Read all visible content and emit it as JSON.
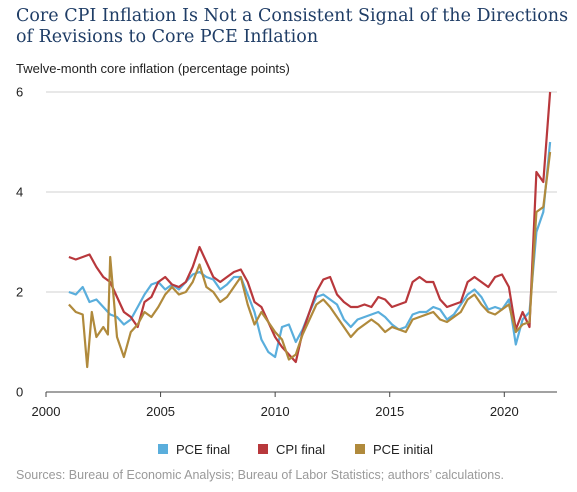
{
  "chart_data": {
    "type": "line",
    "title": "Core CPI Inflation Is Not a Consistent Signal of the Directions of Revisions to Core PCE Inflation",
    "subtitle": "Twelve-month core inflation (percentage points)",
    "source": "Sources: Bureau of Economic Analysis; Bureau of Labor Statistics; authors’ calculations.",
    "xlim": [
      2000,
      2022.3
    ],
    "ylim": [
      0,
      6
    ],
    "x_ticks": [
      "2000",
      "2005",
      "2010",
      "2015",
      "2020"
    ],
    "y_ticks": [
      "0",
      "2",
      "4",
      "6"
    ],
    "grid": "horizontal",
    "legend_position": "bottom",
    "series": [
      {
        "name": "PCE final",
        "color": "#5aaedc",
        "x": [
          2001.0,
          2001.3,
          2001.6,
          2001.9,
          2002.2,
          2002.5,
          2002.8,
          2003.1,
          2003.4,
          2003.7,
          2004.0,
          2004.3,
          2004.6,
          2004.9,
          2005.2,
          2005.5,
          2005.8,
          2006.1,
          2006.4,
          2006.7,
          2007.0,
          2007.3,
          2007.6,
          2007.9,
          2008.2,
          2008.5,
          2008.8,
          2009.1,
          2009.4,
          2009.7,
          2010.0,
          2010.3,
          2010.6,
          2010.9,
          2011.2,
          2011.5,
          2011.8,
          2012.1,
          2012.4,
          2012.7,
          2013.0,
          2013.3,
          2013.6,
          2013.9,
          2014.2,
          2014.5,
          2014.8,
          2015.1,
          2015.4,
          2015.7,
          2016.0,
          2016.3,
          2016.6,
          2016.9,
          2017.2,
          2017.5,
          2017.8,
          2018.1,
          2018.4,
          2018.7,
          2019.0,
          2019.3,
          2019.6,
          2019.9,
          2020.2,
          2020.5,
          2020.8,
          2021.1,
          2021.4,
          2021.7,
          2022.0
        ],
        "values": [
          2.0,
          1.95,
          2.1,
          1.8,
          1.85,
          1.7,
          1.55,
          1.5,
          1.35,
          1.45,
          1.7,
          1.95,
          2.15,
          2.2,
          2.05,
          2.15,
          2.05,
          2.2,
          2.35,
          2.4,
          2.3,
          2.25,
          2.05,
          2.15,
          2.3,
          2.3,
          1.95,
          1.6,
          1.05,
          0.8,
          0.7,
          1.3,
          1.35,
          1.0,
          1.25,
          1.6,
          1.9,
          1.95,
          1.85,
          1.75,
          1.45,
          1.3,
          1.45,
          1.5,
          1.55,
          1.6,
          1.5,
          1.35,
          1.25,
          1.3,
          1.55,
          1.6,
          1.6,
          1.7,
          1.65,
          1.45,
          1.55,
          1.75,
          1.95,
          2.05,
          1.9,
          1.65,
          1.7,
          1.65,
          1.85,
          0.95,
          1.45,
          1.6,
          3.2,
          3.6,
          5.0
        ]
      },
      {
        "name": "CPI final",
        "color": "#b8383c",
        "x": [
          2001.0,
          2001.3,
          2001.6,
          2001.9,
          2002.2,
          2002.5,
          2002.8,
          2003.1,
          2003.4,
          2003.7,
          2004.0,
          2004.3,
          2004.6,
          2004.9,
          2005.2,
          2005.5,
          2005.8,
          2006.1,
          2006.4,
          2006.7,
          2007.0,
          2007.3,
          2007.6,
          2007.9,
          2008.2,
          2008.5,
          2008.8,
          2009.1,
          2009.4,
          2009.7,
          2010.0,
          2010.3,
          2010.6,
          2010.9,
          2011.2,
          2011.5,
          2011.8,
          2012.1,
          2012.4,
          2012.7,
          2013.0,
          2013.3,
          2013.6,
          2013.9,
          2014.2,
          2014.5,
          2014.8,
          2015.1,
          2015.4,
          2015.7,
          2016.0,
          2016.3,
          2016.6,
          2016.9,
          2017.2,
          2017.5,
          2017.8,
          2018.1,
          2018.4,
          2018.7,
          2019.0,
          2019.3,
          2019.6,
          2019.9,
          2020.2,
          2020.5,
          2020.8,
          2021.1,
          2021.4,
          2021.7,
          2022.0
        ],
        "values": [
          2.7,
          2.65,
          2.7,
          2.75,
          2.5,
          2.3,
          2.2,
          1.9,
          1.6,
          1.5,
          1.3,
          1.8,
          1.9,
          2.2,
          2.3,
          2.15,
          2.1,
          2.2,
          2.5,
          2.9,
          2.6,
          2.3,
          2.2,
          2.3,
          2.4,
          2.45,
          2.2,
          1.8,
          1.7,
          1.4,
          1.1,
          0.9,
          0.75,
          0.6,
          1.2,
          1.6,
          2.0,
          2.25,
          2.3,
          1.95,
          1.8,
          1.7,
          1.7,
          1.75,
          1.7,
          1.9,
          1.85,
          1.7,
          1.75,
          1.8,
          2.2,
          2.3,
          2.2,
          2.2,
          1.85,
          1.7,
          1.75,
          1.8,
          2.2,
          2.3,
          2.2,
          2.1,
          2.3,
          2.35,
          2.1,
          1.25,
          1.6,
          1.3,
          4.4,
          4.2,
          6.0
        ]
      },
      {
        "name": "PCE initial",
        "color": "#b08a3c",
        "x": [
          2001.0,
          2001.3,
          2001.6,
          2001.8,
          2002.0,
          2002.2,
          2002.5,
          2002.7,
          2002.8,
          2003.1,
          2003.4,
          2003.7,
          2004.0,
          2004.3,
          2004.6,
          2004.9,
          2005.2,
          2005.5,
          2005.8,
          2006.1,
          2006.4,
          2006.7,
          2007.0,
          2007.3,
          2007.6,
          2007.9,
          2008.2,
          2008.5,
          2008.8,
          2009.1,
          2009.4,
          2009.7,
          2010.0,
          2010.3,
          2010.6,
          2010.9,
          2011.2,
          2011.5,
          2011.8,
          2012.1,
          2012.4,
          2012.7,
          2013.0,
          2013.3,
          2013.6,
          2013.9,
          2014.2,
          2014.5,
          2014.8,
          2015.1,
          2015.4,
          2015.7,
          2016.0,
          2016.3,
          2016.6,
          2016.9,
          2017.2,
          2017.5,
          2017.8,
          2018.1,
          2018.4,
          2018.7,
          2019.0,
          2019.3,
          2019.6,
          2019.9,
          2020.2,
          2020.5,
          2020.8,
          2021.1,
          2021.4,
          2021.7,
          2022.0
        ],
        "values": [
          1.75,
          1.6,
          1.55,
          0.5,
          1.6,
          1.1,
          1.3,
          1.15,
          2.7,
          1.1,
          0.7,
          1.2,
          1.35,
          1.6,
          1.5,
          1.7,
          1.95,
          2.1,
          1.95,
          2.0,
          2.2,
          2.55,
          2.1,
          2.0,
          1.8,
          1.9,
          2.1,
          2.3,
          1.75,
          1.35,
          1.6,
          1.4,
          1.2,
          1.05,
          0.65,
          0.75,
          1.15,
          1.45,
          1.75,
          1.85,
          1.7,
          1.5,
          1.3,
          1.1,
          1.25,
          1.35,
          1.45,
          1.35,
          1.2,
          1.3,
          1.25,
          1.2,
          1.45,
          1.5,
          1.55,
          1.6,
          1.45,
          1.4,
          1.5,
          1.6,
          1.85,
          1.95,
          1.75,
          1.6,
          1.55,
          1.65,
          1.75,
          1.2,
          1.35,
          1.4,
          3.6,
          3.7,
          4.8
        ]
      }
    ]
  }
}
